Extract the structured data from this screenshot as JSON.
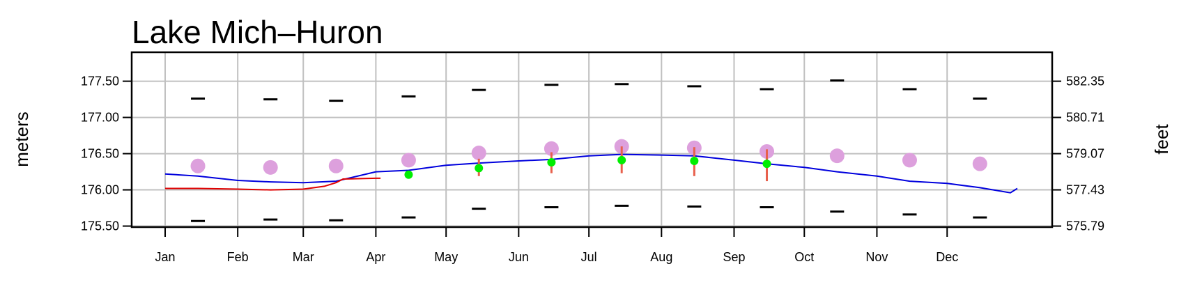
{
  "chart_data": {
    "type": "line",
    "title": "Lake Mich–Huron",
    "ylabel": "meters",
    "ylabel_right": "feet",
    "ylim": [
      175.486,
      177.9
    ],
    "grid": true,
    "x_ticks": [
      "Jan",
      "Feb",
      "Mar",
      "Apr",
      "May",
      "Jun",
      "Jul",
      "Aug",
      "Sep",
      "Oct",
      "Nov",
      "Dec"
    ],
    "y_ticks": [
      175.5,
      176.0,
      176.5,
      177.0,
      177.5
    ],
    "y_tick_labels": [
      "175.50",
      "176.00",
      "176.50",
      "177.00",
      "177.50"
    ],
    "y_right_tick_labels": [
      "575.79",
      "577.43",
      "579.07",
      "580.71",
      "582.35"
    ],
    "colors": {
      "monthly_mean": "#dda0dd",
      "forecast": "#00ee00",
      "forecast_range": "#e8604c",
      "previous_year": "#0000dd",
      "current_year": "#e00000",
      "extremes": "#000000"
    },
    "monthly_dates": [
      "01-15",
      "02-15",
      "03-15",
      "04-15",
      "05-15",
      "06-15",
      "07-15",
      "08-15",
      "09-15",
      "10-15",
      "11-15",
      "12-15"
    ],
    "monthly_max": [
      177.26,
      177.25,
      177.23,
      177.29,
      177.38,
      177.45,
      177.46,
      177.43,
      177.39,
      177.51,
      177.39,
      177.26
    ],
    "monthly_min": [
      175.57,
      175.59,
      175.58,
      175.62,
      175.74,
      175.76,
      175.78,
      175.77,
      175.76,
      175.7,
      175.66,
      175.62
    ],
    "monthly_mean": [
      176.33,
      176.31,
      176.33,
      176.41,
      176.51,
      176.57,
      176.6,
      176.58,
      176.53,
      176.47,
      176.41,
      176.36
    ],
    "forecast": {
      "dates": [
        "04-15",
        "05-15",
        "06-15",
        "07-15",
        "08-15",
        "09-15"
      ],
      "values": [
        176.21,
        176.3,
        176.38,
        176.41,
        176.4,
        176.36
      ],
      "upper": [
        null,
        176.43,
        176.52,
        176.6,
        176.59,
        176.56
      ],
      "lower": [
        null,
        176.19,
        176.23,
        176.23,
        176.19,
        176.12
      ]
    },
    "series": [
      {
        "dates": [
          "01-01",
          "01-15",
          "02-01",
          "02-15",
          "03-01",
          "03-15",
          "04-01",
          "04-15",
          "05-01",
          "05-15",
          "06-01",
          "06-15",
          "07-01",
          "07-15",
          "08-01",
          "08-15",
          "09-01",
          "09-15",
          "10-01",
          "10-15",
          "11-01",
          "11-15",
          "12-01",
          "12-15",
          "12-28",
          "12-31"
        ],
        "values": [
          176.22,
          176.19,
          176.13,
          176.11,
          176.1,
          176.12,
          176.25,
          176.27,
          176.34,
          176.37,
          176.4,
          176.42,
          176.47,
          176.49,
          176.48,
          176.47,
          176.41,
          176.36,
          176.31,
          176.25,
          176.19,
          176.12,
          176.09,
          176.03,
          175.96,
          176.02
        ]
      },
      {
        "dates": [
          "01-01",
          "01-15",
          "02-01",
          "02-15",
          "03-01",
          "03-10",
          "03-15",
          "03-18",
          "04-01",
          "04-03"
        ],
        "values": [
          176.02,
          176.02,
          176.01,
          176.0,
          176.01,
          176.05,
          176.1,
          176.15,
          176.16,
          176.16
        ]
      }
    ]
  }
}
